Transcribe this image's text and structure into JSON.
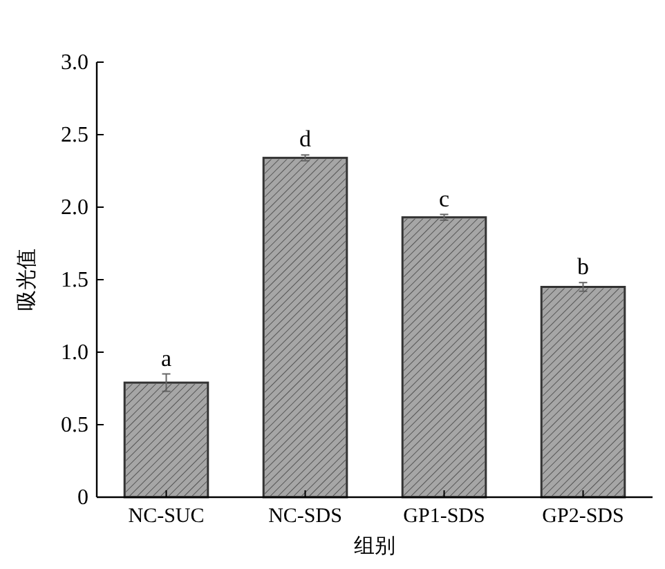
{
  "chart_data": {
    "type": "bar",
    "xlabel": "组别",
    "ylabel": "吸光值",
    "categories": [
      "NC-SUC",
      "NC-SDS",
      "GP1-SDS",
      "GP2-SDS"
    ],
    "values": [
      0.79,
      2.34,
      1.93,
      1.45
    ],
    "errors": [
      0.06,
      0.02,
      0.02,
      0.03
    ],
    "color": "#a6a6a6",
    "ylim": [
      0,
      3.0
    ],
    "yticks": [
      0,
      0.5,
      {
        "value": 1.0,
        "label": "1.0"
      },
      1.5,
      {
        "value": 2.0,
        "label": "2.0"
      },
      2.5,
      {
        "value": 3.0,
        "label": "3.0"
      }
    ],
    "annotations": [
      {
        "text": "a",
        "x": "NC-SUC",
        "y": 0.85
      },
      {
        "text": "d",
        "x": "NC-SDS",
        "y": 2.36
      },
      {
        "text": "c",
        "x": "GP1-SDS",
        "y": 1.95
      },
      {
        "text": "b",
        "x": "GP2-SDS",
        "y": 1.48
      }
    ],
    "grid": false
  }
}
